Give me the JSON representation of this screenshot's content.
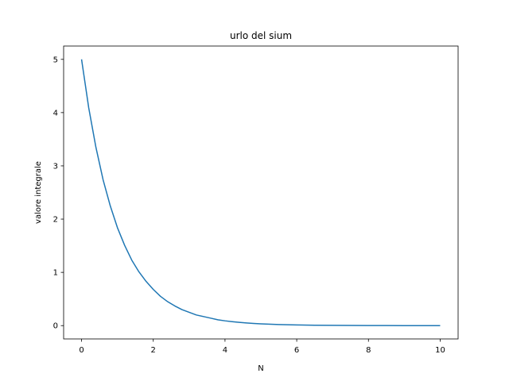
{
  "chart_data": {
    "type": "line",
    "title": "urlo del sium",
    "xlabel": "N",
    "ylabel": "valore integrale",
    "xlim": [
      -0.5,
      10.5
    ],
    "ylim": [
      -0.25,
      5.25
    ],
    "xticks": [
      0,
      2,
      4,
      6,
      8,
      10
    ],
    "yticks": [
      0,
      1,
      2,
      3,
      4,
      5
    ],
    "grid": false,
    "series": [
      {
        "color": "#1f77b4",
        "x": [
          0,
          0.2,
          0.4,
          0.6,
          0.8,
          1.0,
          1.2,
          1.4,
          1.6,
          1.8,
          2.0,
          2.2,
          2.4,
          2.6,
          2.8,
          3.0,
          3.2,
          3.4,
          3.6,
          3.8,
          4.0,
          4.2,
          4.4,
          4.6,
          4.8,
          5.0,
          5.5,
          6.0,
          6.5,
          7.0,
          7.5,
          8.0,
          8.5,
          9.0,
          9.5,
          10.0
        ],
        "y": [
          5.0,
          4.09,
          3.35,
          2.74,
          2.25,
          1.84,
          1.51,
          1.23,
          1.01,
          0.83,
          0.68,
          0.55,
          0.45,
          0.37,
          0.3,
          0.25,
          0.2,
          0.17,
          0.14,
          0.11,
          0.09,
          0.075,
          0.061,
          0.05,
          0.041,
          0.034,
          0.02,
          0.012,
          0.008,
          0.005,
          0.003,
          0.002,
          0.001,
          0.0006,
          0.0004,
          0.0002
        ]
      }
    ]
  }
}
